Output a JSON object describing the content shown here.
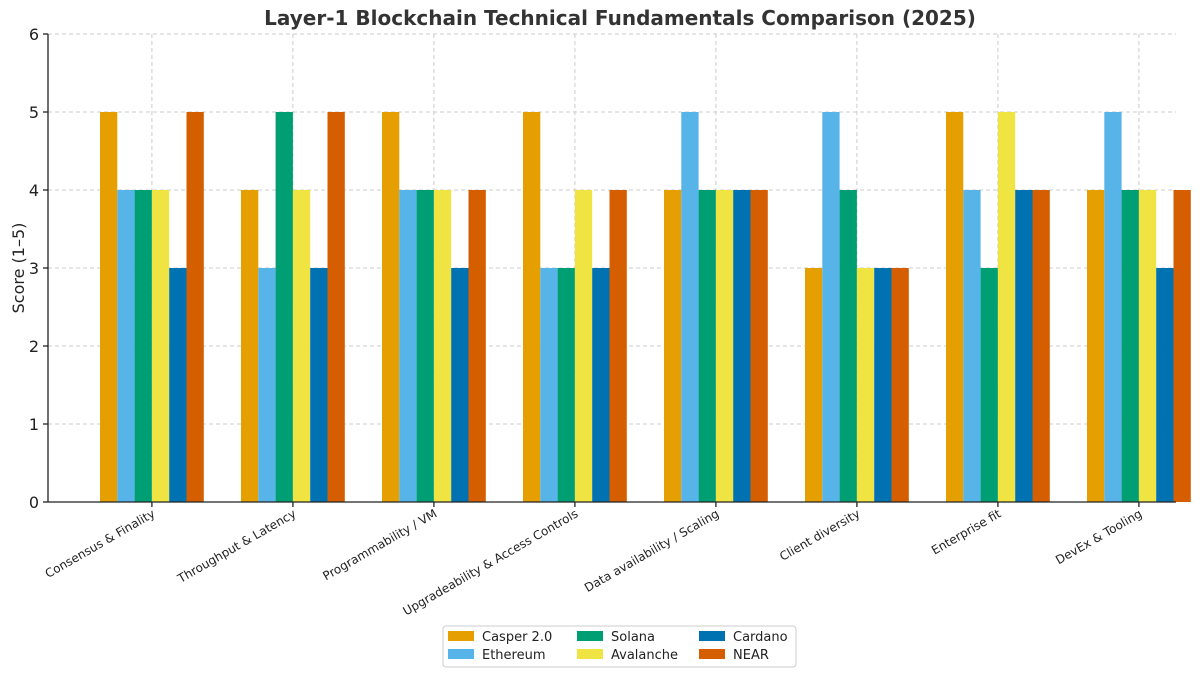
{
  "chart_data": {
    "type": "bar",
    "title": "Layer-1 Blockchain Technical Fundamentals Comparison (2025)",
    "xlabel": "",
    "ylabel": "Score (1–5)",
    "ylim": [
      0,
      6
    ],
    "yticks": [
      0,
      1,
      2,
      3,
      4,
      5,
      6
    ],
    "grid": true,
    "legend_position": "bottom-center",
    "categories": [
      "Consensus & Finality",
      "Throughput & Latency",
      "Programmability / VM",
      "Upgradeability & Access Controls",
      "Data availability / Scaling",
      "Client diversity",
      "Enterprise fit",
      "DevEx & Tooling"
    ],
    "series": [
      {
        "name": "Casper 2.0",
        "color": "#E69F00",
        "values": [
          5,
          4,
          5,
          5,
          4,
          3,
          5,
          4
        ]
      },
      {
        "name": "Ethereum",
        "color": "#56B4E9",
        "values": [
          4,
          3,
          4,
          3,
          5,
          5,
          4,
          5
        ]
      },
      {
        "name": "Solana",
        "color": "#009E73",
        "values": [
          4,
          5,
          4,
          3,
          4,
          4,
          3,
          4
        ]
      },
      {
        "name": "Avalanche",
        "color": "#F0E442",
        "values": [
          4,
          4,
          4,
          4,
          4,
          3,
          5,
          4
        ]
      },
      {
        "name": "Cardano",
        "color": "#0072B2",
        "values": [
          3,
          3,
          3,
          3,
          4,
          3,
          4,
          3
        ]
      },
      {
        "name": "NEAR",
        "color": "#D55E00",
        "values": [
          5,
          5,
          4,
          4,
          4,
          3,
          4,
          4
        ]
      }
    ]
  }
}
